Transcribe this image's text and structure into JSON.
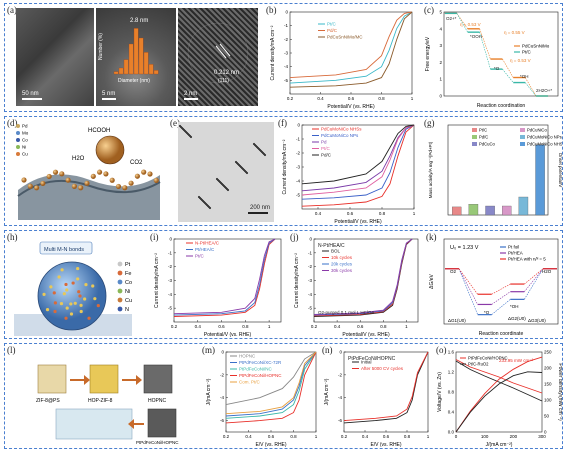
{
  "panels": {
    "a": {
      "tag": "(a)",
      "scale1": "50 nm",
      "scale2": "5 nm",
      "scale3": "2 nm",
      "hist_label": "2.8 nm",
      "hist_xlabel": "Diameter (nm)",
      "hist_ylabel": "Number (%)",
      "lattice": "0.212 nm",
      "plane": "(111)",
      "hist_values": [
        2,
        5,
        12,
        25,
        38,
        30,
        18,
        8,
        3
      ]
    },
    "b": {
      "tag": "(b)"
    },
    "c": {
      "tag": "(c)"
    },
    "d": {
      "tag": "(d)",
      "formic": "HCOOH",
      "water": "H2O",
      "co2": "CO2",
      "legend": [
        "Pd",
        "Mo",
        "Co",
        "Ni",
        "Cu"
      ]
    },
    "e": {
      "tag": "(e)",
      "scale": "200 nm"
    },
    "f": {
      "tag": "(f)"
    },
    "g": {
      "tag": "(g)"
    },
    "h": {
      "tag": "(h)",
      "label": "Multi M-N bonds",
      "legend": [
        "Pt",
        "Fe",
        "Co",
        "Ni",
        "Cu",
        "N"
      ]
    },
    "i": {
      "tag": "(i)"
    },
    "j": {
      "tag": "(j)"
    },
    "k": {
      "tag": "(k)"
    },
    "l": {
      "tag": "(l)",
      "zif": "ZIF-8@PS",
      "hop": "HOP-ZIF-8",
      "hopnc": "HOPNC",
      "product": "PtPdFeCoNi/HOPNC"
    },
    "m": {
      "tag": "(m)"
    },
    "n": {
      "tag": "(n)"
    },
    "o": {
      "tag": "(o)"
    }
  },
  "chart_data": [
    {
      "id": "b",
      "type": "line",
      "xlabel": "Potential/V (vs. RHE)",
      "ylabel": "Current density/mA cm⁻²",
      "xlim": [
        0.2,
        1.0
      ],
      "ylim": [
        -6,
        0
      ],
      "xticks": [
        0.2,
        0.4,
        0.6,
        0.8,
        1.0
      ],
      "yticks": [
        -5,
        -4,
        -3,
        -2,
        -1,
        0
      ],
      "legend": [
        "Pt/C",
        "Pd/C",
        "PdCuSnNiMo/MC"
      ],
      "series": [
        {
          "name": "Pt/C",
          "color": "#3ab8c8",
          "x": [
            0.2,
            0.5,
            0.7,
            0.8,
            0.85,
            0.9,
            0.95,
            1.0
          ],
          "y": [
            -5.2,
            -5.0,
            -4.7,
            -4.0,
            -2.8,
            -1.2,
            -0.3,
            0
          ]
        },
        {
          "name": "Pd/C",
          "color": "#d86a3a",
          "x": [
            0.2,
            0.5,
            0.7,
            0.8,
            0.85,
            0.9,
            0.95,
            1.0
          ],
          "y": [
            -4.8,
            -4.6,
            -4.2,
            -3.2,
            -1.8,
            -0.6,
            -0.1,
            0
          ]
        },
        {
          "name": "PdCuSnNiMo/MC",
          "color": "#8a5a2a",
          "x": [
            0.2,
            0.5,
            0.7,
            0.8,
            0.85,
            0.9,
            0.95,
            1.0
          ],
          "y": [
            -5.5,
            -5.4,
            -5.2,
            -4.8,
            -3.8,
            -2.0,
            -0.5,
            0
          ]
        }
      ]
    },
    {
      "id": "c",
      "type": "line",
      "xlabel": "Reaction coordination",
      "ylabel": "Free energy/eV",
      "xlim": [
        0,
        5
      ],
      "ylim": [
        0,
        5
      ],
      "xticks": [],
      "yticks": [
        0,
        1,
        2,
        3,
        4,
        5
      ],
      "annotations": [
        "O2+*",
        "*OOH",
        "*O",
        "*OH",
        "2H2O+*",
        "η = 0.53 V",
        "η = 0.55 V",
        "η = 0.53 V"
      ],
      "legend": [
        "PdCuSnNiMo",
        "Pt/C"
      ],
      "series": [
        {
          "name": "PdCuSnNiMo",
          "color": "#e8802a",
          "x": [
            0,
            1,
            2,
            3,
            4
          ],
          "y": [
            4.92,
            4.0,
            2.2,
            1.1,
            0
          ]
        },
        {
          "name": "Pt/C",
          "color": "#3ab8a8",
          "x": [
            0,
            1,
            2,
            3,
            4
          ],
          "y": [
            4.92,
            3.8,
            1.6,
            0.8,
            0
          ]
        }
      ]
    },
    {
      "id": "f",
      "type": "line",
      "xlabel": "Potential/V (vs. RHE)",
      "ylabel": "Current density/mA cm⁻²",
      "xlim": [
        0.3,
        1.0
      ],
      "ylim": [
        -6,
        0
      ],
      "xticks": [
        0.4,
        0.6,
        0.8,
        1.0
      ],
      "yticks": [
        -5,
        -4,
        -3,
        -2,
        -1,
        0
      ],
      "legend": [
        "PdCuMoNiCo NHSs",
        "PdCuMoNiCo NPs",
        "Pd",
        "Pt/C",
        "Pd/C"
      ],
      "series": [
        {
          "name": "PdCuMoNiCo NHSs",
          "color": "#e8302a",
          "x": [
            0.3,
            0.5,
            0.7,
            0.8,
            0.85,
            0.9,
            0.95,
            1.0
          ],
          "y": [
            -5.8,
            -5.7,
            -5.5,
            -5.1,
            -4.2,
            -2.2,
            -0.5,
            0
          ]
        },
        {
          "name": "PdCuMoNiCo NPs",
          "color": "#3a60c8",
          "x": [
            0.3,
            0.5,
            0.7,
            0.8,
            0.85,
            0.9,
            0.95,
            1.0
          ],
          "y": [
            -5.3,
            -5.2,
            -5.0,
            -4.5,
            -3.4,
            -1.6,
            -0.3,
            0
          ]
        },
        {
          "name": "Pd",
          "color": "#7a3aa8",
          "x": [
            0.3,
            0.5,
            0.7,
            0.8,
            0.85,
            0.9,
            0.95,
            1.0
          ],
          "y": [
            -4.7,
            -4.5,
            -4.1,
            -3.3,
            -2.2,
            -0.9,
            -0.2,
            0
          ]
        },
        {
          "name": "Pt/C",
          "color": "#e060a0",
          "x": [
            0.3,
            0.5,
            0.7,
            0.8,
            0.85,
            0.9,
            0.95,
            1.0
          ],
          "y": [
            -5.0,
            -4.8,
            -4.5,
            -3.7,
            -2.5,
            -1.0,
            -0.2,
            0
          ]
        },
        {
          "name": "Pd/C",
          "color": "#222222",
          "x": [
            0.3,
            0.5,
            0.7,
            0.8,
            0.85,
            0.9,
            0.95,
            1.0
          ],
          "y": [
            -4.2,
            -4.0,
            -3.5,
            -2.6,
            -1.6,
            -0.6,
            -0.1,
            0
          ]
        }
      ]
    },
    {
      "id": "g",
      "type": "bar",
      "ylabel": "Mass activity/A mg⁻¹(Pd+Pt)",
      "y2label": "Onset potential/V",
      "ylim": [
        0,
        1.0
      ],
      "categories": [
        "Pt/C",
        "Pd/C",
        "PdCuCo",
        "PdCuNiCo",
        "PdCuMoNiCo NPs",
        "PdCuMoNiCo NHSs"
      ],
      "legend": [
        "Pt/C",
        "Pd/C",
        "PdCuCo",
        "PdCuNiCo",
        "PdCuMoNiCo NPs",
        "PdCuMoNiCo NHSs"
      ],
      "values": [
        0.09,
        0.12,
        0.1,
        0.1,
        0.2,
        0.78
      ],
      "colors": [
        "#e88888",
        "#98c878",
        "#8888c8",
        "#d898c8",
        "#78b8d8",
        "#5a9ad8"
      ]
    },
    {
      "id": "i",
      "type": "line",
      "xlabel": "Potential/V (vs. RHE)",
      "ylabel": "Current density/mA cm⁻²",
      "xlim": [
        0.2,
        1.1
      ],
      "ylim": [
        -6,
        0
      ],
      "xticks": [
        0.2,
        0.4,
        0.6,
        0.8,
        1.0
      ],
      "yticks": [
        -5,
        -4,
        -3,
        -2,
        -1,
        0
      ],
      "legend": [
        "N-Pt/HEA/C",
        "Pt/HEA/C",
        "Pt/C"
      ],
      "series": [
        {
          "name": "N-Pt/HEA/C",
          "color": "#e8302a",
          "x": [
            0.2,
            0.6,
            0.8,
            0.88,
            0.92,
            0.96,
            1.0,
            1.05
          ],
          "y": [
            -5.6,
            -5.5,
            -5.3,
            -4.8,
            -3.6,
            -1.8,
            -0.4,
            0
          ]
        },
        {
          "name": "Pt/HEA/C",
          "color": "#3a70c8",
          "x": [
            0.2,
            0.6,
            0.8,
            0.88,
            0.92,
            0.96,
            1.0,
            1.05
          ],
          "y": [
            -5.5,
            -5.4,
            -5.2,
            -4.6,
            -3.3,
            -1.5,
            -0.3,
            0
          ]
        },
        {
          "name": "Pt/C",
          "color": "#8a3aa8",
          "x": [
            0.2,
            0.6,
            0.8,
            0.88,
            0.92,
            0.96,
            1.0,
            1.05
          ],
          "y": [
            -5.4,
            -5.3,
            -5.0,
            -4.3,
            -2.9,
            -1.2,
            -0.2,
            0
          ]
        }
      ]
    },
    {
      "id": "j",
      "type": "line",
      "xlabel": "Potential/V (vs. RHE)",
      "ylabel": "Current density/mA cm⁻²",
      "xlim": [
        0.2,
        1.1
      ],
      "ylim": [
        -6,
        0
      ],
      "xticks": [
        0.2,
        0.4,
        0.6,
        0.8,
        1.0
      ],
      "yticks": [
        -5,
        -4,
        -3,
        -2,
        -1,
        0
      ],
      "title": "N-Pt/HEA/C",
      "note": "O2-purged 0.1 mol L HClO4",
      "legend": [
        "BOL",
        "10k cycles",
        "20k cycles",
        "30k cycles"
      ],
      "series": [
        {
          "name": "BOL",
          "color": "#222222",
          "x": [
            0.2,
            0.6,
            0.8,
            0.88,
            0.92,
            0.96,
            1.0,
            1.05
          ],
          "y": [
            -5.6,
            -5.5,
            -5.3,
            -4.8,
            -3.6,
            -1.8,
            -0.4,
            0
          ]
        },
        {
          "name": "10k cycles",
          "color": "#e8302a",
          "x": [
            0.2,
            0.6,
            0.8,
            0.88,
            0.92,
            0.96,
            1.0,
            1.05
          ],
          "y": [
            -5.55,
            -5.45,
            -5.25,
            -4.7,
            -3.5,
            -1.7,
            -0.35,
            0
          ]
        },
        {
          "name": "20k cycles",
          "color": "#3a70c8",
          "x": [
            0.2,
            0.6,
            0.8,
            0.88,
            0.92,
            0.96,
            1.0,
            1.05
          ],
          "y": [
            -5.5,
            -5.4,
            -5.2,
            -4.6,
            -3.4,
            -1.6,
            -0.3,
            0
          ]
        },
        {
          "name": "30k cycles",
          "color": "#8a3aa8",
          "x": [
            0.2,
            0.6,
            0.8,
            0.88,
            0.92,
            0.96,
            1.0,
            1.05
          ],
          "y": [
            -5.45,
            -5.35,
            -5.15,
            -4.5,
            -3.3,
            -1.5,
            -0.3,
            0
          ]
        }
      ]
    },
    {
      "id": "k",
      "type": "line",
      "xlabel": "Reaction coordinate",
      "ylabel": "ΔG/eV",
      "title": "U₀ = 1.23 V",
      "legend": [
        "Pt foil",
        "Pt/HEA",
        "Pt/HEA with nᵢᴺ = 5"
      ],
      "annotations": [
        "O2",
        "*O",
        "*OH",
        "H2O",
        "ΔG1(U0)",
        "ΔG2(U0)",
        "ΔG3(U0)"
      ],
      "series": [
        {
          "name": "Pt foil",
          "color": "#3a70c8",
          "x": [
            0,
            1,
            2,
            3
          ],
          "y": [
            0,
            -0.9,
            -0.6,
            0
          ]
        },
        {
          "name": "Pt/HEA",
          "color": "#8a3aa8",
          "x": [
            0,
            1,
            2,
            3
          ],
          "y": [
            0,
            -0.7,
            -0.45,
            0
          ]
        },
        {
          "name": "Pt/HEA with nᵢᴺ = 5",
          "color": "#e8302a",
          "x": [
            0,
            1,
            2,
            3
          ],
          "y": [
            0,
            -0.5,
            -0.3,
            0
          ]
        }
      ]
    },
    {
      "id": "m",
      "type": "line",
      "xlabel": "E/V (vs. RHE)",
      "ylabel": "J/(mA cm⁻²)",
      "xlim": [
        0.2,
        1.0
      ],
      "ylim": [
        -7,
        0
      ],
      "xticks": [
        0.2,
        0.4,
        0.6,
        0.8,
        1.0
      ],
      "yticks": [
        -6,
        -4,
        -2,
        0
      ],
      "legend": [
        "HOPNC",
        "PtPdFeCoNi/XC-72R",
        "PtPdFeCoNi/NC",
        "PtPdFeCoNi/HOPNC",
        "Com. Pt/C"
      ],
      "series": [
        {
          "name": "HOPNC",
          "color": "#888888",
          "x": [
            0.2,
            0.5,
            0.7,
            0.8,
            0.9,
            1.0
          ],
          "y": [
            -4.6,
            -4.0,
            -3.2,
            -2.2,
            -0.6,
            0
          ]
        },
        {
          "name": "PtPdFeCoNi/XC-72R",
          "color": "#3a70c8",
          "x": [
            0.2,
            0.5,
            0.7,
            0.8,
            0.85,
            0.9,
            1.0
          ],
          "y": [
            -5.6,
            -5.4,
            -5.0,
            -4.2,
            -3.0,
            -1.2,
            0
          ]
        },
        {
          "name": "PtPdFeCoNi/NC",
          "color": "#3ab8a8",
          "x": [
            0.2,
            0.5,
            0.7,
            0.8,
            0.85,
            0.9,
            1.0
          ],
          "y": [
            -5.8,
            -5.6,
            -5.3,
            -4.6,
            -3.4,
            -1.5,
            0
          ]
        },
        {
          "name": "PtPdFeCoNi/HOPNC",
          "color": "#e8302a",
          "x": [
            0.2,
            0.5,
            0.7,
            0.8,
            0.85,
            0.9,
            1.0
          ],
          "y": [
            -6.2,
            -6.0,
            -5.8,
            -5.3,
            -4.2,
            -2.0,
            0
          ]
        },
        {
          "name": "Com. Pt/C",
          "color": "#e8a040",
          "x": [
            0.2,
            0.5,
            0.7,
            0.8,
            0.85,
            0.9,
            1.0
          ],
          "y": [
            -5.4,
            -5.2,
            -4.8,
            -4.0,
            -2.7,
            -1.0,
            0
          ]
        }
      ]
    },
    {
      "id": "n",
      "type": "line",
      "xlabel": "E/V (vs. RHE)",
      "ylabel": "J/(mA cm⁻²)",
      "xlim": [
        0.2,
        1.0
      ],
      "ylim": [
        -7,
        0
      ],
      "xticks": [
        0.2,
        0.4,
        0.6,
        0.8,
        1.0
      ],
      "yticks": [
        -6,
        -4,
        -2,
        0
      ],
      "title": "PtPdFeCoNi/HOPNC",
      "legend": [
        "Initial",
        "After 5000 CV cycles"
      ],
      "series": [
        {
          "name": "Initial",
          "color": "#222222",
          "x": [
            0.2,
            0.5,
            0.7,
            0.8,
            0.85,
            0.9,
            1.0
          ],
          "y": [
            -6.2,
            -6.0,
            -5.8,
            -5.3,
            -4.2,
            -2.0,
            0
          ]
        },
        {
          "name": "After 5000 CV cycles",
          "color": "#e8302a",
          "x": [
            0.2,
            0.5,
            0.7,
            0.8,
            0.85,
            0.9,
            1.0
          ],
          "y": [
            -6.0,
            -5.8,
            -5.6,
            -5.0,
            -3.9,
            -1.8,
            0
          ]
        }
      ]
    },
    {
      "id": "o",
      "type": "line",
      "xlabel": "J/(mA cm⁻²)",
      "ylabel": "Voltage/V (vs. Zn)",
      "y2label": "Power density/(mW cm⁻²)",
      "xlim": [
        0,
        300
      ],
      "ylim": [
        0,
        1.6
      ],
      "xticks": [
        0,
        100,
        200,
        300
      ],
      "yticks": [
        0.0,
        0.4,
        0.8,
        1.2,
        1.6
      ],
      "y2lim": [
        0,
        250
      ],
      "y2ticks": [
        0,
        50,
        100,
        150,
        200,
        250
      ],
      "legend": [
        "PtPdFeCoNi/HOPNC",
        "Pt/C-RuO2"
      ],
      "annotation": "233.95 mW cm⁻²",
      "series": [
        {
          "name": "PtPdFeCoNi/HOPNC",
          "color": "#e8302a",
          "x": [
            0,
            50,
            100,
            150,
            200,
            250,
            300
          ],
          "y": [
            1.45,
            1.3,
            1.2,
            1.1,
            0.98,
            0.88,
            0.78
          ]
        },
        {
          "name": "Pt/C-RuO2",
          "color": "#222222",
          "x": [
            0,
            50,
            100,
            150,
            200,
            250,
            300
          ],
          "y": [
            1.42,
            1.25,
            1.12,
            1.0,
            0.88,
            0.75,
            0.62
          ]
        },
        {
          "name": "PtPdFeCoNi/HOPNC power",
          "color": "#e8302a",
          "x": [
            0,
            50,
            100,
            150,
            200,
            250,
            300
          ],
          "y": [
            0,
            65,
            120,
            165,
            196,
            220,
            234
          ]
        },
        {
          "name": "Pt/C-RuO2 power",
          "color": "#222222",
          "x": [
            0,
            50,
            100,
            150,
            200,
            250,
            300
          ],
          "y": [
            0,
            62,
            112,
            150,
            176,
            188,
            186
          ]
        }
      ]
    }
  ]
}
